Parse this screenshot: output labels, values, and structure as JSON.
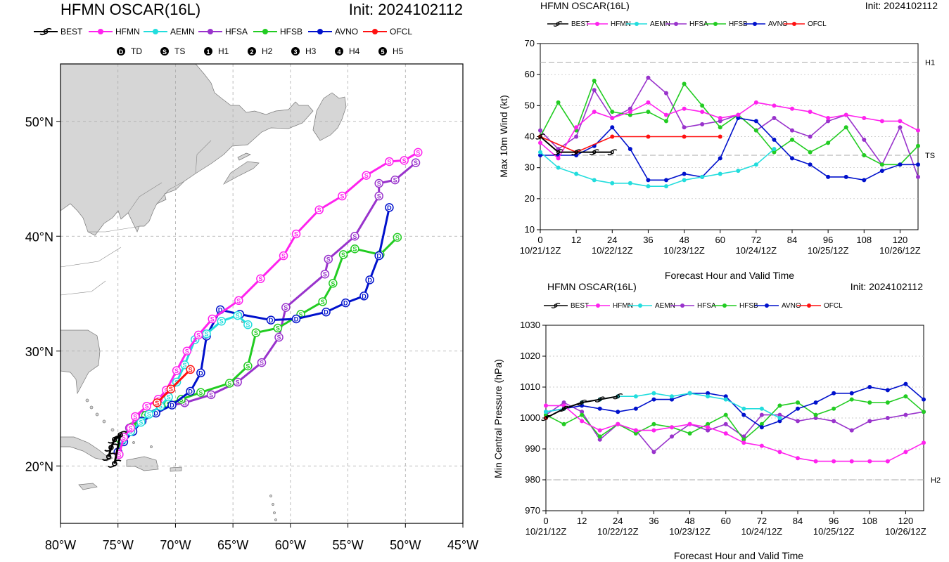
{
  "colors": {
    "BEST": "#000000",
    "HFMN": "#ff22ee",
    "AEMN": "#22dddd",
    "HFSA": "#9933cc",
    "HFSB": "#22cc22",
    "AVNO": "#0011cc",
    "OFCL": "#ff1111",
    "land": "#d6d6d6",
    "water": "#ffffff"
  },
  "legend": [
    "BEST",
    "HFMN",
    "AEMN",
    "HFSA",
    "HFSB",
    "AVNO",
    "OFCL"
  ],
  "intensity_legend": [
    {
      "symbol": "D",
      "label": "TD"
    },
    {
      "symbol": "S",
      "label": "TS"
    },
    {
      "symbol": "1",
      "label": "H1"
    },
    {
      "symbol": "2",
      "label": "H2"
    },
    {
      "symbol": "3",
      "label": "H3"
    },
    {
      "symbol": "4",
      "label": "H4"
    },
    {
      "symbol": "5",
      "label": "H5"
    }
  ],
  "map": {
    "title_left": "HFMN OSCAR(16L)",
    "title_right": "Init: 2024102112",
    "lon_range": [
      -80,
      -45
    ],
    "lat_range": [
      15,
      55
    ],
    "lon_ticks": [
      "80°W",
      "75°W",
      "70°W",
      "65°W",
      "60°W",
      "55°W",
      "50°W",
      "45°W"
    ],
    "lat_ticks": [
      "20°N",
      "30°N",
      "40°N",
      "50°N"
    ]
  },
  "chart_data": [
    {
      "type": "scatter",
      "subtype": "track-map",
      "title": "HFMN OSCAR(16L)",
      "init": "Init: 2024102112",
      "x_axis": "longitude",
      "y_axis": "latitude",
      "xlim": [
        -80,
        -45
      ],
      "ylim": [
        15,
        55
      ],
      "series": [
        {
          "name": "BEST",
          "points": [
            [
              -75.8,
              20.8
            ],
            [
              -75.6,
              21.6
            ],
            [
              -75.3,
              22.3
            ],
            [
              -74.8,
              22.7
            ],
            [
              -75.3,
              20.2
            ]
          ],
          "labels": "S"
        },
        {
          "name": "HFMN",
          "points": [
            [
              -74.9,
              21.0
            ],
            [
              -74.5,
              22.5
            ],
            [
              -73.9,
              23.3
            ],
            [
              -73.5,
              24.3
            ],
            [
              -72.5,
              25.2
            ],
            [
              -71.5,
              25.8
            ],
            [
              -70.8,
              26.6
            ],
            [
              -69.9,
              28.3
            ],
            [
              -69.0,
              30.0
            ],
            [
              -68.0,
              31.4
            ],
            [
              -66.8,
              32.8
            ],
            [
              -64.5,
              34.4
            ],
            [
              -62.6,
              36.3
            ],
            [
              -60.6,
              38.3
            ],
            [
              -59.5,
              40.2
            ],
            [
              -57.5,
              42.3
            ],
            [
              -55.5,
              43.5
            ],
            [
              -53.4,
              45.3
            ],
            [
              -51.4,
              46.5
            ],
            [
              -50.1,
              46.6
            ],
            [
              -48.9,
              47.3
            ]
          ],
          "labels": "S"
        },
        {
          "name": "AEMN",
          "points": [
            [
              -74.9,
              21.0
            ],
            [
              -74.6,
              22.3
            ],
            [
              -73.9,
              23.0
            ],
            [
              -73.0,
              23.8
            ],
            [
              -72.3,
              24.5
            ],
            [
              -71.3,
              25.2
            ],
            [
              -70.6,
              26.0
            ],
            [
              -69.9,
              27.3
            ],
            [
              -69.2,
              28.8
            ],
            [
              -68.3,
              31.0
            ],
            [
              -67.3,
              31.5
            ],
            [
              -66.0,
              32.6
            ],
            [
              -64.6,
              33.1
            ],
            [
              -63.7,
              32.3
            ]
          ],
          "labels": "S"
        },
        {
          "name": "HFSA",
          "points": [
            [
              -75.0,
              21.2
            ],
            [
              -74.7,
              22.4
            ],
            [
              -74.0,
              23.3
            ],
            [
              -72.8,
              24.4
            ],
            [
              -71.3,
              25.1
            ],
            [
              -69.2,
              25.5
            ],
            [
              -66.9,
              26.2
            ],
            [
              -64.6,
              27.3
            ],
            [
              -62.5,
              29.0
            ],
            [
              -61.0,
              31.2
            ],
            [
              -60.4,
              33.8
            ],
            [
              -57.0,
              36.7
            ],
            [
              -56.7,
              38.0
            ],
            [
              -54.4,
              40.0
            ],
            [
              -52.3,
              43.5
            ],
            [
              -52.3,
              44.6
            ],
            [
              -50.9,
              44.9
            ],
            [
              -49.1,
              46.4
            ]
          ],
          "labels": "S"
        },
        {
          "name": "HFSB",
          "points": [
            [
              -75.0,
              21.2
            ],
            [
              -74.8,
              22.3
            ],
            [
              -73.8,
              23.4
            ],
            [
              -72.6,
              24.4
            ],
            [
              -70.6,
              25.4
            ],
            [
              -69.5,
              25.8
            ],
            [
              -67.8,
              26.4
            ],
            [
              -65.3,
              27.2
            ],
            [
              -63.7,
              28.7
            ],
            [
              -63.0,
              31.6
            ],
            [
              -61.1,
              32.0
            ],
            [
              -59.1,
              33.2
            ],
            [
              -57.2,
              34.3
            ],
            [
              -56.3,
              35.9
            ],
            [
              -55.4,
              38.4
            ],
            [
              -54.4,
              38.9
            ],
            [
              -52.2,
              38.4
            ],
            [
              -50.7,
              39.9
            ]
          ],
          "labels": "S"
        },
        {
          "name": "AVNO",
          "points": [
            [
              -75.0,
              21.2
            ],
            [
              -74.5,
              22.1
            ],
            [
              -73.7,
              23.0
            ],
            [
              -72.9,
              23.9
            ],
            [
              -71.7,
              24.6
            ],
            [
              -70.3,
              25.3
            ],
            [
              -68.7,
              26.5
            ],
            [
              -67.8,
              28.1
            ],
            [
              -67.3,
              31.3
            ],
            [
              -66.1,
              33.6
            ],
            [
              -64.4,
              33.2
            ],
            [
              -61.7,
              32.7
            ],
            [
              -59.5,
              32.8
            ],
            [
              -56.9,
              33.4
            ],
            [
              -55.2,
              34.2
            ],
            [
              -53.6,
              34.8
            ],
            [
              -53.1,
              36.2
            ],
            [
              -52.3,
              38.3
            ],
            [
              -51.4,
              42.5
            ]
          ],
          "labels": "D"
        },
        {
          "name": "OFCL",
          "points": [
            [
              -71.6,
              25.5
            ],
            [
              -70.4,
              26.7
            ],
            [
              -68.7,
              28.4
            ]
          ],
          "labels": "S"
        }
      ]
    },
    {
      "type": "line",
      "title": "HFMN OSCAR(16L)",
      "init": "Init: 2024102112",
      "xlabel": "Forecast Hour and Valid Time",
      "ylabel": "Max 10m Wind (kt)",
      "xlim": [
        0,
        126
      ],
      "ylim": [
        10,
        70
      ],
      "xticks": [
        0,
        12,
        24,
        36,
        48,
        60,
        72,
        84,
        96,
        108,
        120
      ],
      "yticks": [
        10,
        20,
        30,
        40,
        50,
        60,
        70
      ],
      "date_labels": [
        "10/21/12Z",
        "10/22/12Z",
        "10/23/12Z",
        "10/24/12Z",
        "10/25/12Z",
        "10/26/12Z"
      ],
      "ref_lines": [
        {
          "label": "H1",
          "y": 64
        },
        {
          "label": "TS",
          "y": 34
        }
      ],
      "series": [
        {
          "name": "BEST",
          "x": [
            0,
            6,
            12,
            18,
            24
          ],
          "values": [
            40,
            35,
            35,
            35,
            35
          ]
        },
        {
          "name": "HFMN",
          "x": [
            0,
            6,
            12,
            18,
            24,
            30,
            36,
            42,
            48,
            54,
            60,
            66,
            72,
            78,
            84,
            90,
            96,
            102,
            108,
            114,
            120,
            126
          ],
          "values": [
            38,
            33,
            43,
            48,
            46,
            48,
            51,
            47,
            49,
            48,
            46,
            47,
            51,
            50,
            49,
            48,
            46,
            47,
            46,
            45,
            45,
            42
          ]
        },
        {
          "name": "AEMN",
          "x": [
            0,
            6,
            12,
            18,
            24,
            30,
            36,
            42,
            48,
            54,
            60,
            66,
            72,
            78
          ],
          "values": [
            35,
            30,
            28,
            26,
            25,
            25,
            24,
            24,
            26,
            27,
            28,
            29,
            31,
            36
          ]
        },
        {
          "name": "HFSA",
          "x": [
            0,
            6,
            12,
            18,
            24,
            30,
            36,
            42,
            48,
            54,
            60,
            66,
            72,
            78,
            84,
            90,
            96,
            102,
            108,
            114,
            120,
            126
          ],
          "values": [
            42,
            36,
            40,
            55,
            46,
            49,
            59,
            54,
            43,
            44,
            45,
            47,
            42,
            46,
            42,
            40,
            45,
            47,
            39,
            31,
            43,
            27
          ]
        },
        {
          "name": "HFSB",
          "x": [
            0,
            6,
            12,
            18,
            24,
            30,
            36,
            42,
            48,
            54,
            60,
            66,
            72,
            78,
            84,
            90,
            96,
            102,
            108,
            114,
            120,
            126
          ],
          "values": [
            40,
            51,
            42,
            58,
            48,
            47,
            48,
            45,
            57,
            50,
            43,
            47,
            42,
            35,
            39,
            35,
            38,
            43,
            34,
            31,
            31,
            37
          ]
        },
        {
          "name": "AVNO",
          "x": [
            0,
            6,
            12,
            18,
            24,
            30,
            36,
            42,
            48,
            54,
            60,
            66,
            72,
            78,
            84,
            90,
            96,
            102,
            108,
            114,
            120,
            126
          ],
          "values": [
            34,
            34,
            34,
            37,
            43,
            36,
            26,
            26,
            28,
            27,
            33,
            46,
            45,
            39,
            33,
            31,
            27,
            27,
            26,
            29,
            31,
            31
          ]
        },
        {
          "name": "OFCL",
          "x": [
            0,
            12,
            24,
            36,
            48,
            60
          ],
          "values": [
            40,
            35,
            40,
            40,
            40,
            40
          ]
        }
      ]
    },
    {
      "type": "line",
      "title": "HFMN OSCAR(16L)",
      "init": "Init: 2024102112",
      "xlabel": "Forecast Hour and Valid Time",
      "ylabel": "Min Central Pressure (hPa)",
      "xlim": [
        0,
        126
      ],
      "ylim": [
        970,
        1030
      ],
      "xticks": [
        0,
        12,
        24,
        36,
        48,
        60,
        72,
        84,
        96,
        108,
        120
      ],
      "yticks": [
        970,
        980,
        990,
        1000,
        1010,
        1020,
        1030
      ],
      "date_labels": [
        "10/21/12Z",
        "10/22/12Z",
        "10/23/12Z",
        "10/24/12Z",
        "10/25/12Z",
        "10/26/12Z"
      ],
      "ref_lines": [
        {
          "label": "H2",
          "y": 980
        }
      ],
      "series": [
        {
          "name": "BEST",
          "x": [
            0,
            6,
            12,
            18,
            24
          ],
          "values": [
            1000,
            1003,
            1005,
            1006,
            1007
          ]
        },
        {
          "name": "HFMN",
          "x": [
            0,
            6,
            12,
            18,
            24,
            30,
            36,
            42,
            48,
            54,
            60,
            66,
            72,
            78,
            84,
            90,
            96,
            102,
            108,
            114,
            120,
            126
          ],
          "values": [
            1004,
            1004,
            999,
            996,
            998,
            996,
            996,
            997,
            998,
            997,
            995,
            992,
            991,
            989,
            987,
            986,
            986,
            986,
            986,
            986,
            989,
            992
          ]
        },
        {
          "name": "AEMN",
          "x": [
            0,
            6,
            12,
            18,
            24,
            30,
            36,
            42,
            48,
            54,
            60,
            66,
            72,
            78
          ],
          "values": [
            1002,
            1003,
            1005,
            1006,
            1007,
            1007,
            1008,
            1007,
            1008,
            1007,
            1006,
            1003,
            1003,
            1000
          ]
        },
        {
          "name": "HFSA",
          "x": [
            0,
            6,
            12,
            18,
            24,
            30,
            36,
            42,
            48,
            54,
            60,
            66,
            72,
            78,
            84,
            90,
            96,
            102,
            108,
            114,
            120,
            126
          ],
          "values": [
            1001,
            1005,
            1002,
            993,
            998,
            996,
            989,
            994,
            998,
            996,
            998,
            994,
            1001,
            1001,
            999,
            1000,
            999,
            996,
            999,
            1000,
            1001,
            1002
          ]
        },
        {
          "name": "HFSB",
          "x": [
            0,
            6,
            12,
            18,
            24,
            30,
            36,
            42,
            48,
            54,
            60,
            66,
            72,
            78,
            84,
            90,
            96,
            102,
            108,
            114,
            120,
            126
          ],
          "values": [
            1001,
            998,
            1001,
            994,
            998,
            995,
            998,
            997,
            995,
            998,
            1001,
            993,
            998,
            1004,
            1005,
            1001,
            1003,
            1006,
            1005,
            1005,
            1007,
            1002
          ]
        },
        {
          "name": "AVNO",
          "x": [
            0,
            6,
            12,
            18,
            24,
            30,
            36,
            42,
            48,
            54,
            60,
            66,
            72,
            78,
            84,
            90,
            96,
            102,
            108,
            114,
            120,
            126
          ],
          "values": [
            1002,
            1003,
            1004,
            1003,
            1002,
            1003,
            1006,
            1006,
            1008,
            1008,
            1007,
            1001,
            997,
            999,
            1003,
            1005,
            1008,
            1008,
            1010,
            1009,
            1011,
            1006
          ]
        },
        {
          "name": "OFCL",
          "x": [
            0
          ],
          "values": [
            1000
          ]
        }
      ]
    }
  ]
}
